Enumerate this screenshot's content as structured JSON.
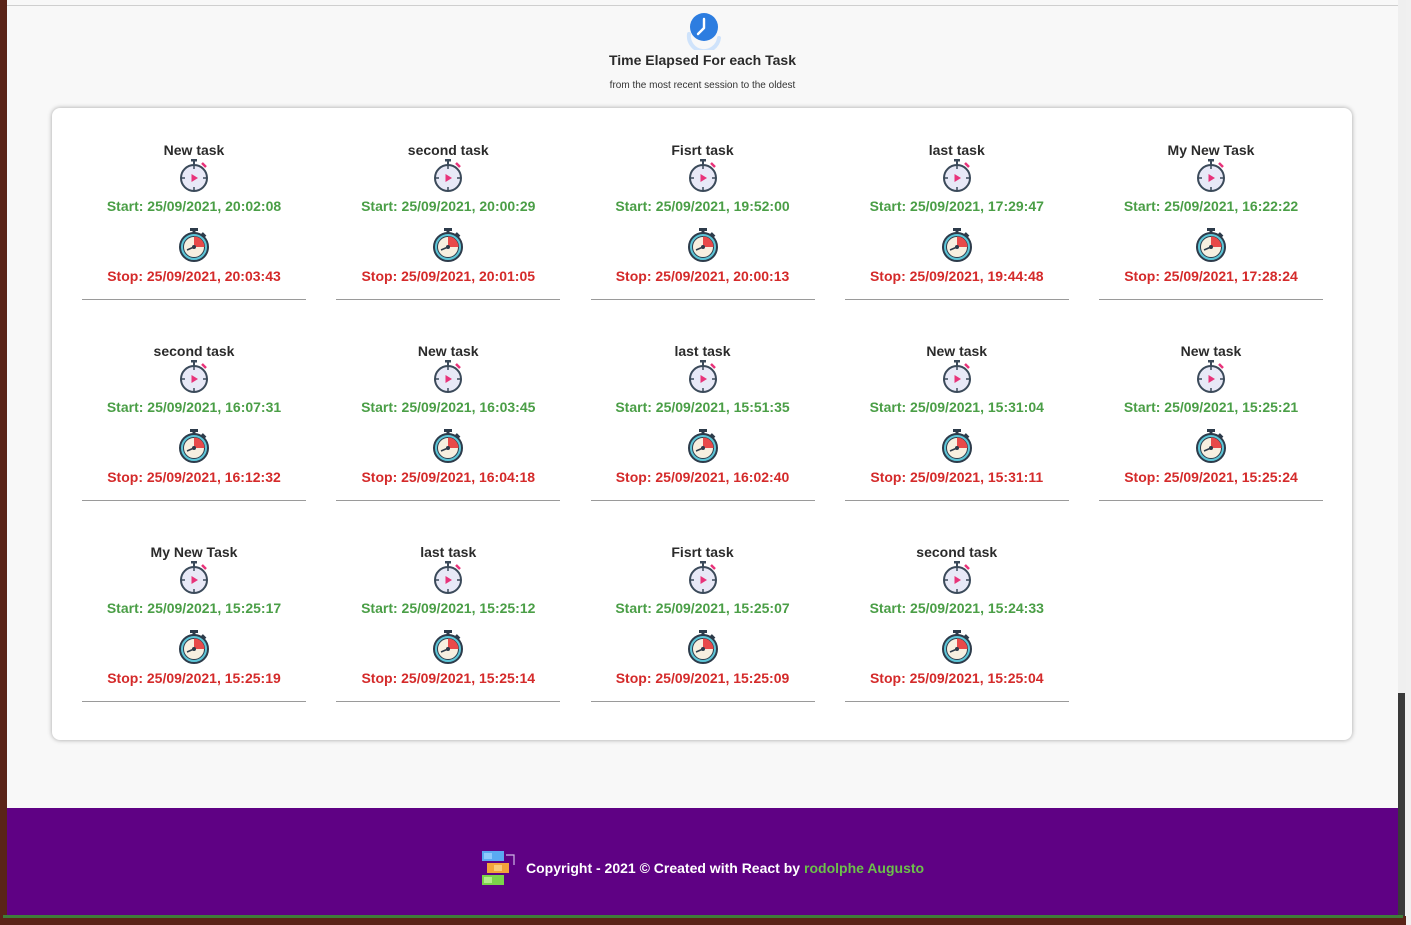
{
  "header": {
    "icon": "clock-arrow-icon",
    "title": "Time Elapsed For each Task",
    "subtitle": "from the most recent session to the oldest"
  },
  "tasks": [
    {
      "name": "New task",
      "start": "Start: 25/09/2021, 20:02:08",
      "stop": "Stop: 25/09/2021, 20:03:43"
    },
    {
      "name": "second task",
      "start": "Start: 25/09/2021, 20:00:29",
      "stop": "Stop: 25/09/2021, 20:01:05"
    },
    {
      "name": "Fisrt task",
      "start": "Start: 25/09/2021, 19:52:00",
      "stop": "Stop: 25/09/2021, 20:00:13"
    },
    {
      "name": "last task",
      "start": "Start: 25/09/2021, 17:29:47",
      "stop": "Stop: 25/09/2021, 19:44:48"
    },
    {
      "name": "My New Task",
      "start": "Start: 25/09/2021, 16:22:22",
      "stop": "Stop: 25/09/2021, 17:28:24"
    },
    {
      "name": "second task",
      "start": "Start: 25/09/2021, 16:07:31",
      "stop": "Stop: 25/09/2021, 16:12:32"
    },
    {
      "name": "New task",
      "start": "Start: 25/09/2021, 16:03:45",
      "stop": "Stop: 25/09/2021, 16:04:18"
    },
    {
      "name": "last task",
      "start": "Start: 25/09/2021, 15:51:35",
      "stop": "Stop: 25/09/2021, 16:02:40"
    },
    {
      "name": "New task",
      "start": "Start: 25/09/2021, 15:31:04",
      "stop": "Stop: 25/09/2021, 15:31:11"
    },
    {
      "name": "New task",
      "start": "Start: 25/09/2021, 15:25:21",
      "stop": "Stop: 25/09/2021, 15:25:24"
    },
    {
      "name": "My New Task",
      "start": "Start: 25/09/2021, 15:25:17",
      "stop": "Stop: 25/09/2021, 15:25:19"
    },
    {
      "name": "last task",
      "start": "Start: 25/09/2021, 15:25:12",
      "stop": "Stop: 25/09/2021, 15:25:14"
    },
    {
      "name": "Fisrt task",
      "start": "Start: 25/09/2021, 15:25:07",
      "stop": "Stop: 25/09/2021, 15:25:09"
    },
    {
      "name": "second task",
      "start": "Start: 25/09/2021, 15:24:33",
      "stop": "Stop: 25/09/2021, 15:25:04"
    }
  ],
  "icons": {
    "start": "stopwatch-play-icon",
    "stop": "stopwatch-stop-icon"
  },
  "footer": {
    "logo": "app-logo-icon",
    "text": "Copyright - 2021 © Created with React by",
    "author": "rodolphe Augusto"
  },
  "colors": {
    "start": "#4a9e46",
    "stop": "#d42a2a",
    "footer_bg": "#5f0184",
    "author": "#6cc04a"
  }
}
